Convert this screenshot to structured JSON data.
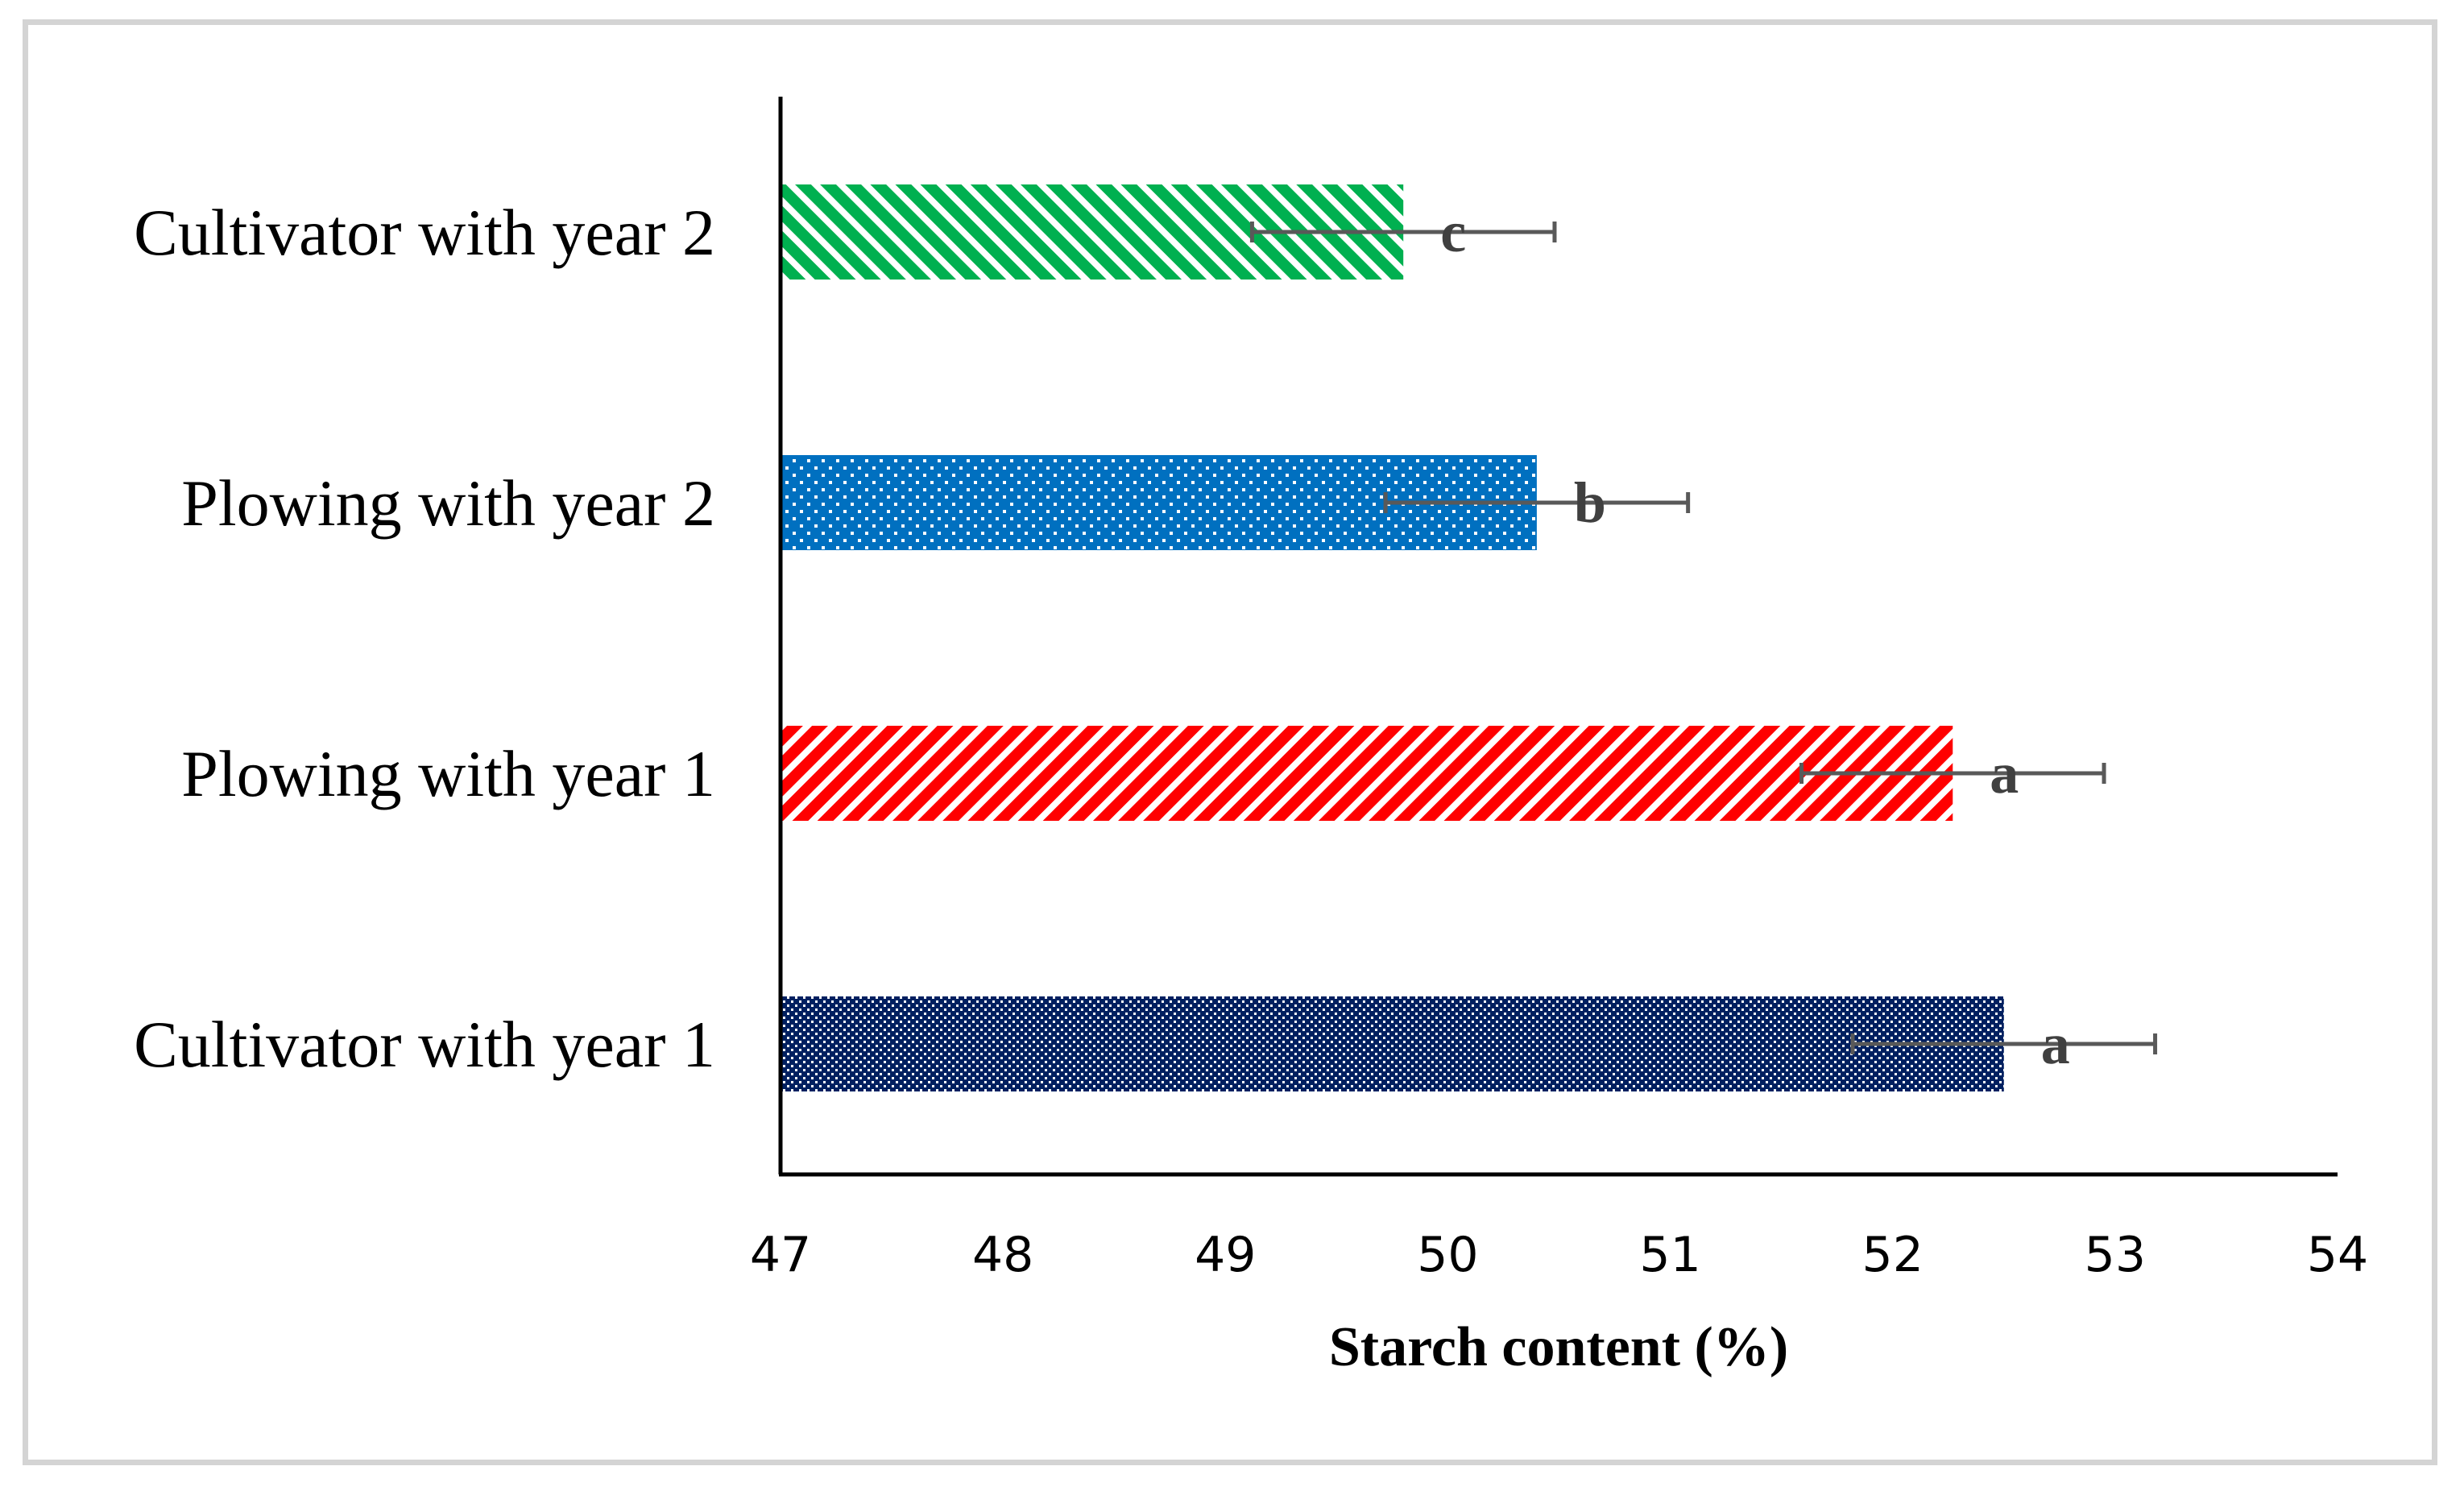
{
  "chart_data": {
    "type": "bar",
    "orientation": "horizontal",
    "categories": [
      "Cultivator with year 2",
      "Plowing with year 2",
      "Plowing with year 1",
      "Cultivator with year 1"
    ],
    "values": [
      49.8,
      50.4,
      52.27,
      52.5
    ],
    "errors": [
      0.68,
      0.68,
      0.68,
      0.68
    ],
    "significance_labels": [
      "c",
      "b",
      "a",
      "a"
    ],
    "colors": [
      "#00b050",
      "#0070c0",
      "#ff0000",
      "#002060"
    ],
    "patterns": [
      "diagonal-stripes",
      "dots",
      "diagonal-stripes",
      "dense-dots"
    ],
    "xlabel": "Starch content (%)",
    "ylabel": "",
    "xlim": [
      47,
      54
    ],
    "xticks": [
      "47",
      "48",
      "49",
      "50",
      "51",
      "52",
      "53",
      "54"
    ],
    "grid": false,
    "legend": "none"
  }
}
